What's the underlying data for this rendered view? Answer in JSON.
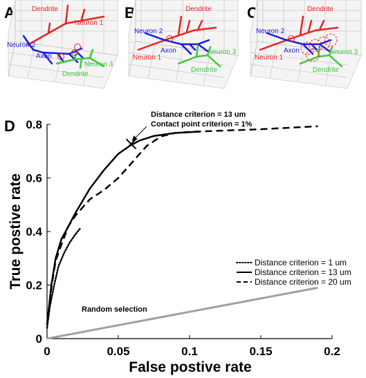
{
  "panels": {
    "a": {
      "letter": "A",
      "labels": {
        "dendrite_top": "Dendrite",
        "neuron1": "Neuron 1",
        "neuron2": "Neuron 2",
        "axon": "Axon",
        "neuron3": "Neuron 3",
        "dendrite_bottom": "Dendrite"
      }
    },
    "b": {
      "letter": "B",
      "labels": {
        "dendrite_top": "Dendrite",
        "neuron2": "Neuron 2",
        "axon": "Axon",
        "neuron3": "Neuron 3",
        "neuron1": "Neuron 1",
        "dendrite_bottom": "Dendrite"
      }
    },
    "c": {
      "letter": "C",
      "labels": {
        "dendrite_top": "Dendrite",
        "neuron2": "Neuron 2",
        "axon": "Axon",
        "neuron3": "Neuron 3",
        "neuron1": "Neuron 1",
        "dendrite_bottom": "Dendrite"
      }
    },
    "d": {
      "letter": "D"
    }
  },
  "colors": {
    "neuron1": "#e8231f",
    "neuron2": "#1a1adc",
    "neuron3": "#3cc83c",
    "random_line": "#a0a0a0",
    "contact_circle": "#e8231f"
  },
  "chart_data": {
    "type": "line",
    "xlabel": "False postive rate",
    "ylabel": "True postive rate",
    "xlim": [
      0,
      0.2
    ],
    "ylim": [
      0,
      0.8
    ],
    "xticks": [
      0,
      0.05,
      0.1,
      0.15,
      0.2
    ],
    "xtick_labels": [
      "0",
      "0.05",
      "0.1",
      "0.15",
      "0.2"
    ],
    "yticks": [
      0,
      0.2,
      0.4,
      0.6,
      0.8
    ],
    "ytick_labels": [
      "0",
      "0.2",
      "0.4",
      "0.6",
      "0.8"
    ],
    "grid": false,
    "legend_position": "lower-right",
    "series": [
      {
        "name": "Distance criterion = 1 um",
        "style": "dotted",
        "x": [
          0,
          0.002,
          0.005,
          0.008,
          0.012,
          0.016,
          0.02,
          0.023
        ],
        "y": [
          0.04,
          0.12,
          0.2,
          0.27,
          0.32,
          0.36,
          0.39,
          0.41
        ]
      },
      {
        "name": "Distance criterion = 13 um",
        "style": "solid",
        "x": [
          0,
          0.003,
          0.006,
          0.01,
          0.015,
          0.02,
          0.03,
          0.04,
          0.05,
          0.058,
          0.065,
          0.075,
          0.09,
          0.107
        ],
        "y": [
          0.05,
          0.2,
          0.3,
          0.37,
          0.42,
          0.47,
          0.56,
          0.63,
          0.69,
          0.72,
          0.74,
          0.757,
          0.768,
          0.773
        ]
      },
      {
        "name": "Distance criterion = 20 um",
        "style": "dashed",
        "x": [
          0,
          0.003,
          0.006,
          0.01,
          0.015,
          0.02,
          0.03,
          0.04,
          0.05,
          0.06,
          0.065,
          0.07,
          0.08,
          0.09,
          0.1,
          0.12,
          0.15,
          0.19
        ],
        "y": [
          0.05,
          0.19,
          0.29,
          0.35,
          0.42,
          0.46,
          0.52,
          0.555,
          0.6,
          0.66,
          0.69,
          0.72,
          0.755,
          0.768,
          0.772,
          0.776,
          0.782,
          0.793
        ]
      },
      {
        "name": "Random selection",
        "style": "gray",
        "x": [
          0,
          0.19
        ],
        "y": [
          0,
          0.19
        ]
      }
    ],
    "marker": {
      "x": 0.059,
      "y": 0.727,
      "symbol": "X"
    },
    "annotations": [
      "Distance criterion = 13 um",
      "Contact point criterion = 1%"
    ],
    "random_label": "Random selection"
  }
}
